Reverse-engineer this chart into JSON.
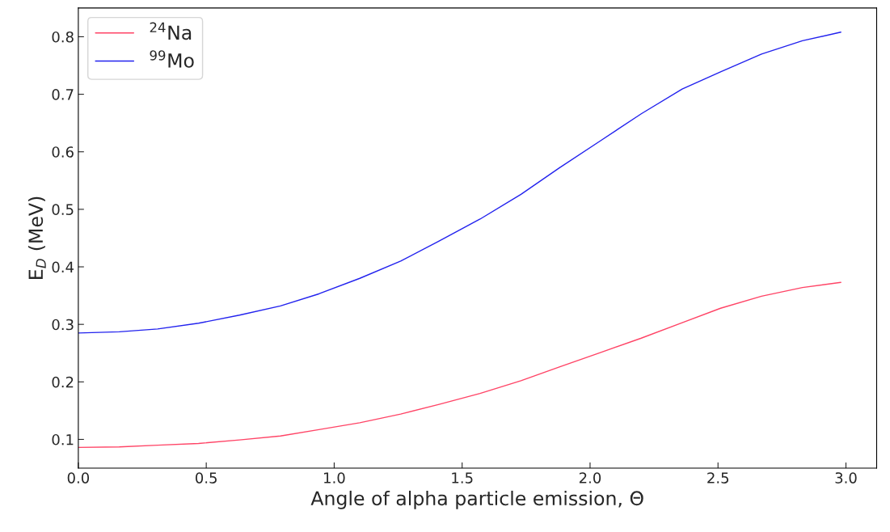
{
  "chart_data": {
    "type": "line",
    "xlabel": "Angle of alpha particle emission, Θ",
    "ylabel": "E$_{D}$ (MeV)",
    "x": [
      0,
      0.16,
      0.31,
      0.47,
      0.63,
      0.79,
      0.94,
      1.1,
      1.26,
      1.41,
      1.57,
      1.73,
      1.88,
      2.04,
      2.2,
      2.36,
      2.51,
      2.67,
      2.83,
      2.98
    ],
    "series": [
      {
        "name": "$^{24}$Na",
        "color": "#ff4466",
        "values": [
          0.086,
          0.087,
          0.09,
          0.093,
          0.099,
          0.106,
          0.117,
          0.129,
          0.144,
          0.161,
          0.18,
          0.202,
          0.226,
          0.251,
          0.276,
          0.303,
          0.328,
          0.349,
          0.364,
          0.373
        ]
      },
      {
        "name": "$^{99}$Mo",
        "color": "#2222ee",
        "values": [
          0.285,
          0.287,
          0.292,
          0.302,
          0.316,
          0.332,
          0.353,
          0.38,
          0.41,
          0.445,
          0.483,
          0.526,
          0.572,
          0.619,
          0.666,
          0.709,
          0.739,
          0.77,
          0.793,
          0.808
        ]
      }
    ],
    "xlim": [
      0,
      3.12
    ],
    "ylim": [
      0.05,
      0.85
    ],
    "xticks": [
      {
        "value": 0,
        "label": "0.0"
      },
      {
        "value": 0.5,
        "label": "0.5"
      },
      {
        "value": 1,
        "label": "1.0"
      },
      {
        "value": 1.5,
        "label": "1.5"
      },
      {
        "value": 2,
        "label": "2.0"
      },
      {
        "value": 2.5,
        "label": "2.5"
      },
      {
        "value": 3,
        "label": "3.0"
      }
    ],
    "yticks": [
      {
        "value": 0.1,
        "label": "0.1"
      },
      {
        "value": 0.2,
        "label": "0.2"
      },
      {
        "value": 0.3,
        "label": "0.3"
      },
      {
        "value": 0.4,
        "label": "0.4"
      },
      {
        "value": 0.5,
        "label": "0.5"
      },
      {
        "value": 0.6,
        "label": "0.6"
      },
      {
        "value": 0.7,
        "label": "0.7"
      },
      {
        "value": 0.8,
        "label": "0.8"
      }
    ],
    "legend": "top left",
    "grid": false,
    "line_style": "solid"
  }
}
